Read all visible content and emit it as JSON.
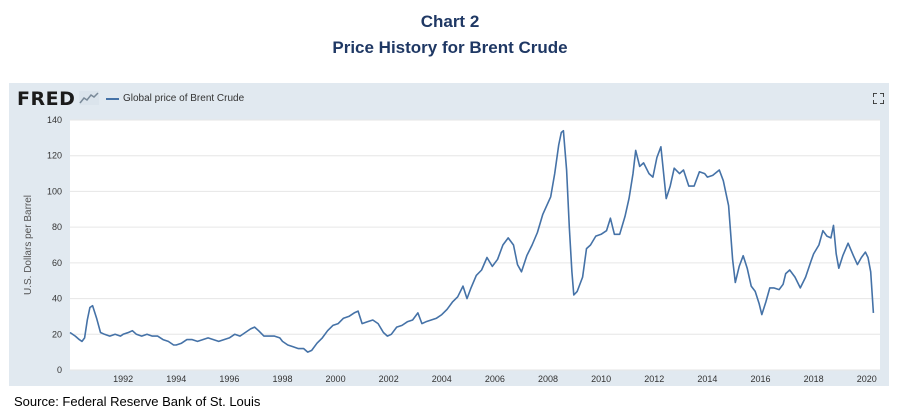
{
  "header": {
    "chart_number": "Chart 2",
    "title": "Price History for Brent Crude"
  },
  "fred": {
    "logo": "FRED",
    "logo_icon": "fred-chart-logo-icon",
    "expand_icon": "fullscreen-expand-icon"
  },
  "source": "Source:  Federal Reserve Bank of St. Louis",
  "colors": {
    "line": "#4572a7",
    "panel": "#e1e9f0",
    "title": "#1f3864"
  },
  "chart_data": {
    "type": "line",
    "ylabel": "U.S. Dollars per Barrel",
    "ylim": [
      0,
      140
    ],
    "yticks": [
      0,
      20,
      40,
      60,
      80,
      100,
      120,
      140
    ],
    "xlim": [
      1990.0,
      2020.5
    ],
    "xticks": [
      "1992",
      "1994",
      "1996",
      "1998",
      "2000",
      "2002",
      "2004",
      "2006",
      "2008",
      "2010",
      "2012",
      "2014",
      "2016",
      "2018",
      "2020"
    ],
    "grid": true,
    "legend": "top-left",
    "series": [
      {
        "name": "Global price of Brent Crude",
        "color": "#4572a7",
        "points": [
          [
            1990.0,
            21
          ],
          [
            1990.2,
            19
          ],
          [
            1990.35,
            17
          ],
          [
            1990.45,
            16
          ],
          [
            1990.55,
            18
          ],
          [
            1990.65,
            28
          ],
          [
            1990.75,
            35
          ],
          [
            1990.85,
            36
          ],
          [
            1991.0,
            29
          ],
          [
            1991.15,
            21
          ],
          [
            1991.3,
            20
          ],
          [
            1991.5,
            19
          ],
          [
            1991.7,
            20
          ],
          [
            1991.9,
            19
          ],
          [
            1992.0,
            20
          ],
          [
            1992.2,
            21
          ],
          [
            1992.35,
            22
          ],
          [
            1992.5,
            20
          ],
          [
            1992.7,
            19
          ],
          [
            1992.9,
            20
          ],
          [
            1993.1,
            19
          ],
          [
            1993.3,
            19
          ],
          [
            1993.5,
            17
          ],
          [
            1993.7,
            16
          ],
          [
            1993.9,
            14
          ],
          [
            1994.0,
            14
          ],
          [
            1994.2,
            15
          ],
          [
            1994.4,
            17
          ],
          [
            1994.6,
            17
          ],
          [
            1994.8,
            16
          ],
          [
            1995.0,
            17
          ],
          [
            1995.2,
            18
          ],
          [
            1995.4,
            17
          ],
          [
            1995.6,
            16
          ],
          [
            1995.8,
            17
          ],
          [
            1996.0,
            18
          ],
          [
            1996.2,
            20
          ],
          [
            1996.4,
            19
          ],
          [
            1996.6,
            21
          ],
          [
            1996.8,
            23
          ],
          [
            1996.95,
            24
          ],
          [
            1997.1,
            22
          ],
          [
            1997.3,
            19
          ],
          [
            1997.5,
            19
          ],
          [
            1997.7,
            19
          ],
          [
            1997.9,
            18
          ],
          [
            1998.0,
            16
          ],
          [
            1998.2,
            14
          ],
          [
            1998.4,
            13
          ],
          [
            1998.6,
            12
          ],
          [
            1998.8,
            12
          ],
          [
            1998.95,
            10
          ],
          [
            1999.1,
            11
          ],
          [
            1999.3,
            15
          ],
          [
            1999.5,
            18
          ],
          [
            1999.7,
            22
          ],
          [
            1999.9,
            25
          ],
          [
            2000.1,
            26
          ],
          [
            2000.3,
            29
          ],
          [
            2000.5,
            30
          ],
          [
            2000.7,
            32
          ],
          [
            2000.85,
            33
          ],
          [
            2001.0,
            26
          ],
          [
            2001.2,
            27
          ],
          [
            2001.4,
            28
          ],
          [
            2001.6,
            26
          ],
          [
            2001.8,
            21
          ],
          [
            2001.95,
            19
          ],
          [
            2002.1,
            20
          ],
          [
            2002.3,
            24
          ],
          [
            2002.5,
            25
          ],
          [
            2002.7,
            27
          ],
          [
            2002.9,
            28
          ],
          [
            2003.1,
            32
          ],
          [
            2003.25,
            26
          ],
          [
            2003.4,
            27
          ],
          [
            2003.6,
            28
          ],
          [
            2003.8,
            29
          ],
          [
            2004.0,
            31
          ],
          [
            2004.2,
            34
          ],
          [
            2004.4,
            38
          ],
          [
            2004.6,
            41
          ],
          [
            2004.8,
            47
          ],
          [
            2004.95,
            40
          ],
          [
            2005.1,
            46
          ],
          [
            2005.3,
            53
          ],
          [
            2005.5,
            56
          ],
          [
            2005.7,
            63
          ],
          [
            2005.9,
            58
          ],
          [
            2006.1,
            62
          ],
          [
            2006.3,
            70
          ],
          [
            2006.5,
            74
          ],
          [
            2006.7,
            70
          ],
          [
            2006.85,
            59
          ],
          [
            2007.0,
            55
          ],
          [
            2007.2,
            64
          ],
          [
            2007.4,
            70
          ],
          [
            2007.6,
            77
          ],
          [
            2007.8,
            87
          ],
          [
            2007.95,
            92
          ],
          [
            2008.1,
            97
          ],
          [
            2008.25,
            110
          ],
          [
            2008.4,
            126
          ],
          [
            2008.5,
            133
          ],
          [
            2008.58,
            134
          ],
          [
            2008.7,
            112
          ],
          [
            2008.8,
            80
          ],
          [
            2008.9,
            55
          ],
          [
            2008.97,
            42
          ],
          [
            2009.1,
            44
          ],
          [
            2009.3,
            52
          ],
          [
            2009.45,
            68
          ],
          [
            2009.6,
            70
          ],
          [
            2009.8,
            75
          ],
          [
            2010.0,
            76
          ],
          [
            2010.2,
            78
          ],
          [
            2010.35,
            85
          ],
          [
            2010.5,
            76
          ],
          [
            2010.7,
            76
          ],
          [
            2010.9,
            86
          ],
          [
            2011.05,
            96
          ],
          [
            2011.2,
            110
          ],
          [
            2011.3,
            123
          ],
          [
            2011.45,
            114
          ],
          [
            2011.6,
            116
          ],
          [
            2011.8,
            110
          ],
          [
            2011.95,
            108
          ],
          [
            2012.1,
            119
          ],
          [
            2012.25,
            125
          ],
          [
            2012.45,
            96
          ],
          [
            2012.6,
            103
          ],
          [
            2012.75,
            113
          ],
          [
            2012.95,
            110
          ],
          [
            2013.1,
            112
          ],
          [
            2013.3,
            103
          ],
          [
            2013.5,
            103
          ],
          [
            2013.7,
            111
          ],
          [
            2013.9,
            110
          ],
          [
            2014.0,
            108
          ],
          [
            2014.2,
            109
          ],
          [
            2014.45,
            112
          ],
          [
            2014.6,
            106
          ],
          [
            2014.8,
            92
          ],
          [
            2014.95,
            62
          ],
          [
            2015.05,
            49
          ],
          [
            2015.2,
            58
          ],
          [
            2015.35,
            64
          ],
          [
            2015.5,
            57
          ],
          [
            2015.65,
            47
          ],
          [
            2015.8,
            44
          ],
          [
            2015.95,
            37
          ],
          [
            2016.05,
            31
          ],
          [
            2016.2,
            38
          ],
          [
            2016.35,
            46
          ],
          [
            2016.5,
            46
          ],
          [
            2016.7,
            45
          ],
          [
            2016.85,
            48
          ],
          [
            2016.95,
            54
          ],
          [
            2017.1,
            56
          ],
          [
            2017.3,
            52
          ],
          [
            2017.5,
            46
          ],
          [
            2017.7,
            52
          ],
          [
            2017.9,
            61
          ],
          [
            2018.0,
            65
          ],
          [
            2018.2,
            70
          ],
          [
            2018.35,
            78
          ],
          [
            2018.5,
            75
          ],
          [
            2018.65,
            74
          ],
          [
            2018.75,
            81
          ],
          [
            2018.85,
            65
          ],
          [
            2018.95,
            57
          ],
          [
            2019.1,
            64
          ],
          [
            2019.3,
            71
          ],
          [
            2019.5,
            64
          ],
          [
            2019.65,
            59
          ],
          [
            2019.8,
            63
          ],
          [
            2019.95,
            66
          ],
          [
            2020.05,
            63
          ],
          [
            2020.15,
            55
          ],
          [
            2020.25,
            32
          ]
        ]
      }
    ]
  }
}
